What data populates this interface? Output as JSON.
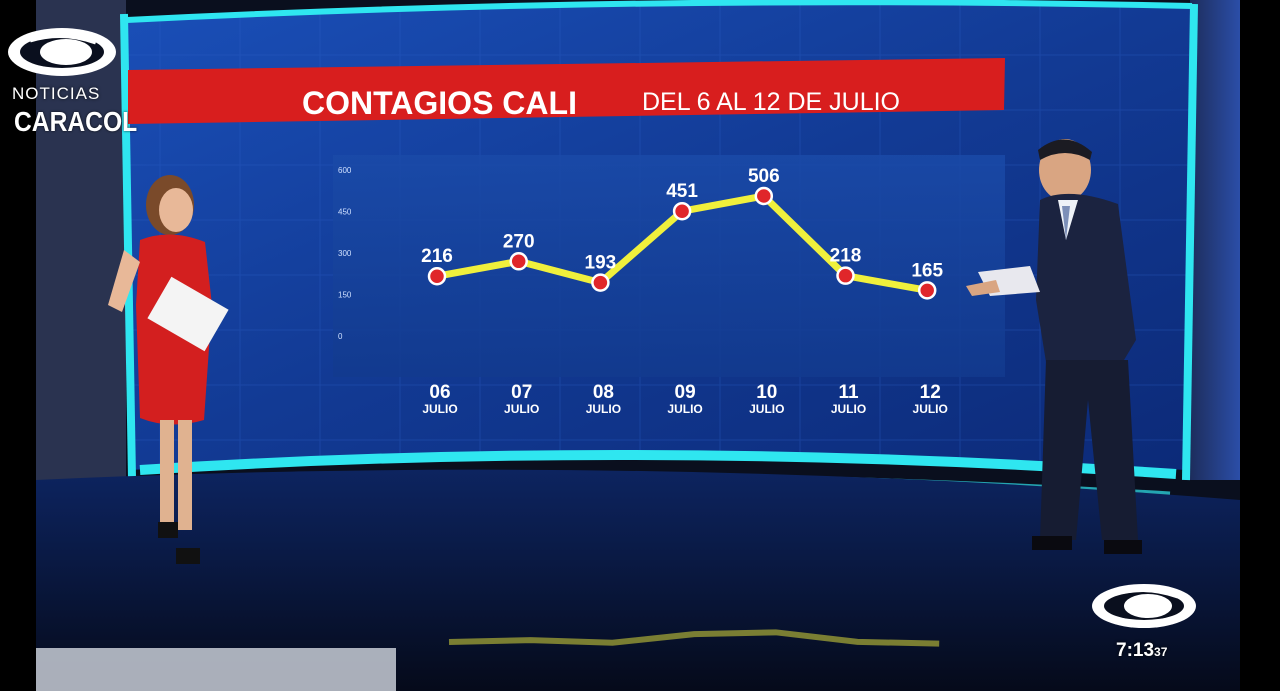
{
  "broadcaster": {
    "noticias_label": "NOTICIAS",
    "name": "CARACOL"
  },
  "clock": {
    "time": "7:13",
    "seconds": "37"
  },
  "colors": {
    "banner_red": "#d81e1e",
    "line_yellow": "#f0f03c",
    "marker_red": "#e0262a",
    "screen_blue": "#123a94",
    "frame_cyan": "#2fe6f0"
  },
  "chart_data": {
    "type": "line",
    "title": "CONTAGIOS CALI",
    "subtitle": "DEL 6 AL 12 DE JULIO",
    "categories": [
      "06",
      "07",
      "08",
      "09",
      "10",
      "11",
      "12"
    ],
    "category_sublabel": "JULIO",
    "values": [
      216,
      270,
      193,
      451,
      506,
      218,
      165
    ],
    "y_ticks": [
      0,
      150,
      300,
      450,
      600
    ],
    "ylim": [
      0,
      600
    ],
    "grid": false,
    "legend": "none"
  }
}
